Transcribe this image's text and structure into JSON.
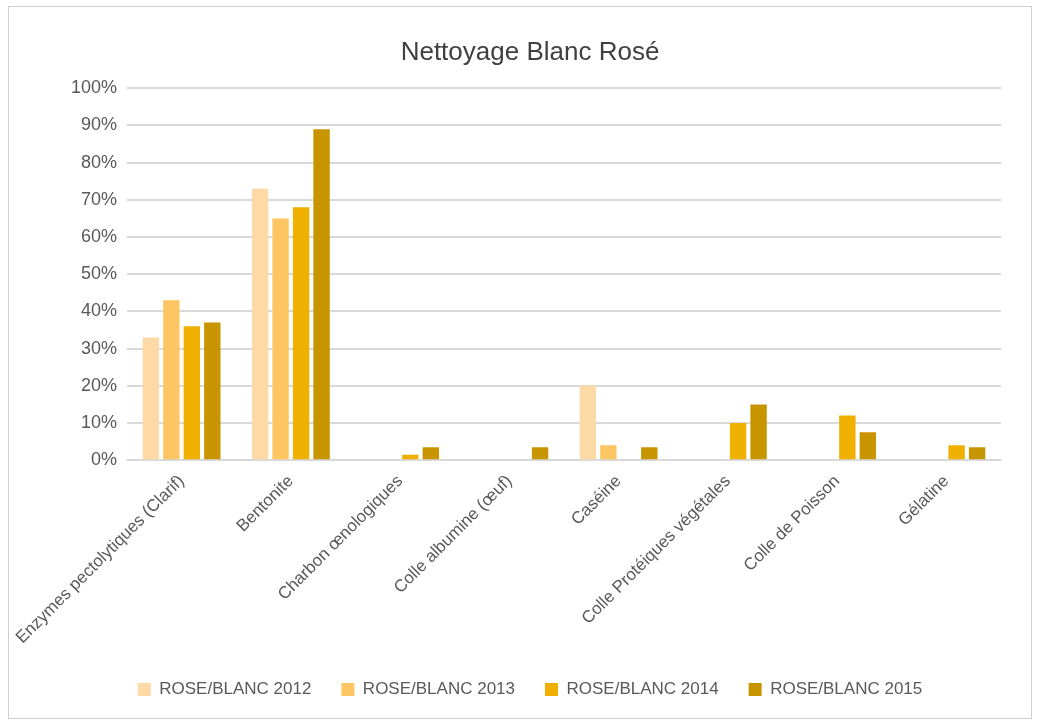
{
  "chart_data": {
    "type": "bar",
    "title": "Nettoyage Blanc Rosé",
    "categories": [
      "Enzymes pectolytiques (Clarif)",
      "Bentonite",
      "Charbon œnologiques",
      "Colle albumine (œuf)",
      "Caséine",
      "Colle Protéiques végétales",
      "Colle de Poisson",
      "Gélatine"
    ],
    "series": [
      {
        "name": "ROSE/BLANC 2012",
        "color": "#fdd9a5",
        "values": [
          33,
          73,
          null,
          null,
          20,
          null,
          null,
          null
        ]
      },
      {
        "name": "ROSE/BLANC 2013",
        "color": "#fec662",
        "values": [
          43,
          65,
          null,
          null,
          4,
          null,
          null,
          null
        ]
      },
      {
        "name": "ROSE/BLANC 2014",
        "color": "#f0b000",
        "values": [
          36,
          68,
          1.5,
          null,
          null,
          10,
          12,
          4
        ]
      },
      {
        "name": "ROSE/BLANC 2015",
        "color": "#c89400",
        "values": [
          37,
          89,
          3.5,
          3.5,
          3.5,
          15,
          7.5,
          3.5
        ]
      }
    ],
    "ylim": [
      0,
      100
    ],
    "yticks": [
      {
        "value": 0,
        "label": "0%"
      },
      {
        "value": 10,
        "label": "10%"
      },
      {
        "value": 20,
        "label": "20%"
      },
      {
        "value": 30,
        "label": "30%"
      },
      {
        "value": 40,
        "label": "40%"
      },
      {
        "value": 50,
        "label": "50%"
      },
      {
        "value": 60,
        "label": "60%"
      },
      {
        "value": 70,
        "label": "70%"
      },
      {
        "value": 80,
        "label": "80%"
      },
      {
        "value": 90,
        "label": "90%"
      },
      {
        "value": 100,
        "label": "100%"
      }
    ],
    "grid": "y",
    "legend": "bottom"
  }
}
